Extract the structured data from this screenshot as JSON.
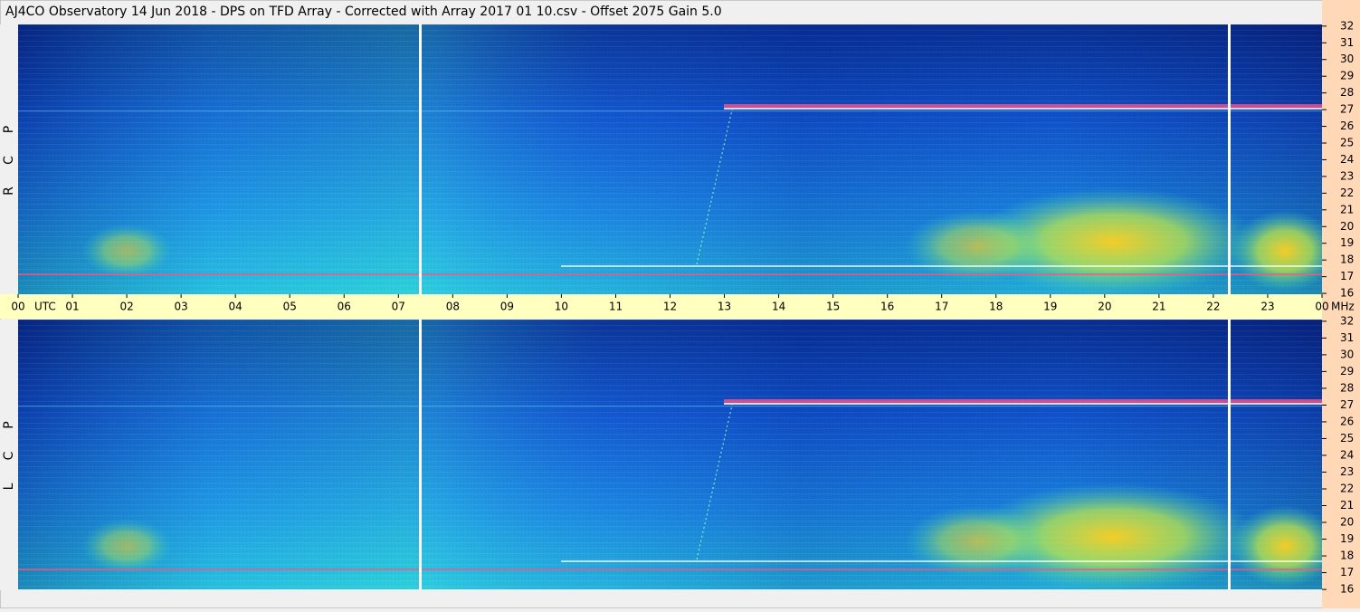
{
  "chart_data": {
    "type": "spectrogram",
    "title": "AJ4CO Observatory  14 Jun 2018  -  DPS on TFD Array  -  Corrected with Array 2017 01 10.csv  -  Offset 2075  Gain 5.0",
    "x_label": "UTC",
    "y_label": "MHz",
    "panels": [
      [
        "R",
        "C",
        "P"
      ],
      [
        "L",
        "C",
        "P"
      ]
    ],
    "xlim": [
      0,
      24
    ],
    "xticks": [
      {
        "value": 0,
        "label": "00"
      },
      {
        "value": 1,
        "label": "01"
      },
      {
        "value": 2,
        "label": "02"
      },
      {
        "value": 3,
        "label": "03"
      },
      {
        "value": 4,
        "label": "04"
      },
      {
        "value": 5,
        "label": "05"
      },
      {
        "value": 6,
        "label": "06"
      },
      {
        "value": 7,
        "label": "07"
      },
      {
        "value": 8,
        "label": "08"
      },
      {
        "value": 9,
        "label": "09"
      },
      10,
      11,
      12,
      13,
      14,
      15,
      16,
      17,
      18,
      19,
      20,
      21,
      22,
      23,
      {
        "value": 24,
        "label": "00"
      }
    ],
    "ylim": [
      15.95,
      32.1
    ],
    "yticks": [
      16,
      17,
      18,
      19,
      20,
      21,
      22,
      23,
      24,
      25,
      26,
      27,
      28,
      29,
      30,
      31,
      32
    ]
  }
}
